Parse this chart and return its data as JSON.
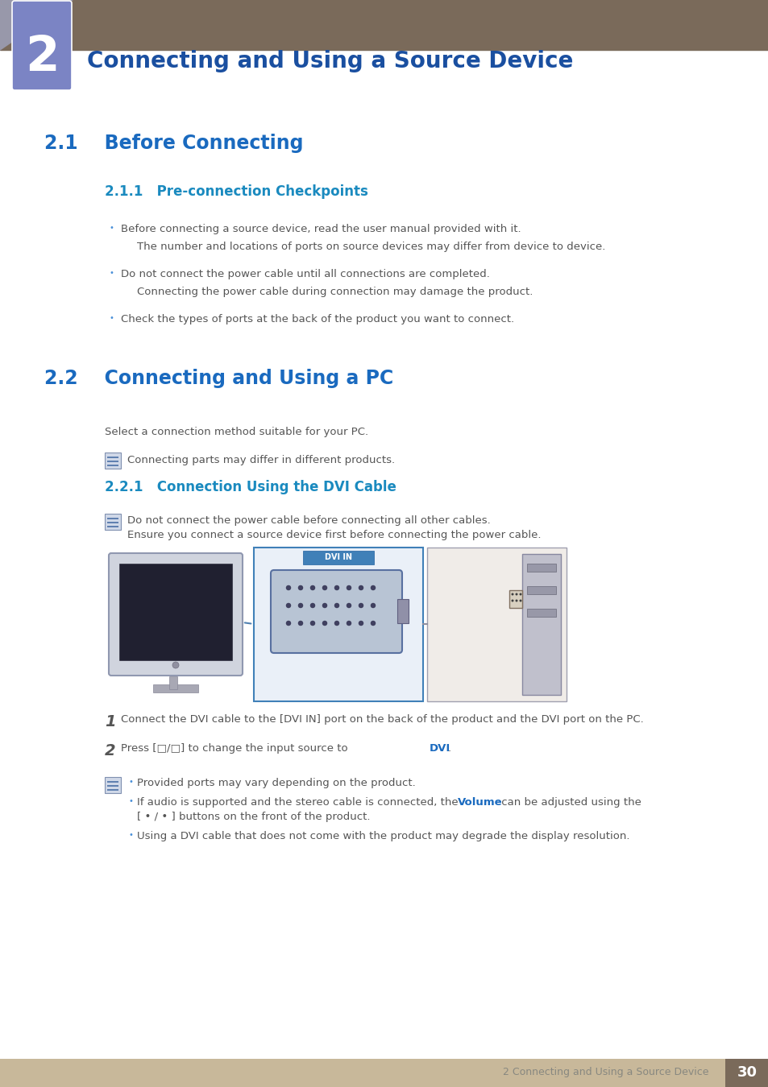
{
  "page_bg": "#ffffff",
  "header_bar_color": "#7a6a5a",
  "chapter_box_color": "#7b84c4",
  "chapter_number": "2",
  "chapter_title": "Connecting and Using a Source Device",
  "chapter_title_color": "#1a4fa0",
  "section_21_title": "2.1    Before Connecting",
  "section_21_color": "#1a6abf",
  "subsection_211_title": "2.1.1   Pre-connection Checkpoints",
  "subsection_211_color": "#1a8abf",
  "bullet_color": "#4a90d9",
  "body_text_color": "#555555",
  "bullets_211": [
    "Before connecting a source device, read the user manual provided with it.",
    "The number and locations of ports on source devices may differ from device to device.",
    "Do not connect the power cable until all connections are completed.",
    "Connecting the power cable during connection may damage the product.",
    "Check the types of ports at the back of the product you want to connect."
  ],
  "bullet_211_is_main": [
    true,
    false,
    true,
    false,
    true
  ],
  "section_22_title": "2.2    Connecting and Using a PC",
  "section_22_color": "#1a6abf",
  "intro_text": "Select a connection method suitable for your PC.",
  "note_text_1": "Connecting parts may differ in different products.",
  "subsection_221_title": "2.2.1   Connection Using the DVI Cable",
  "subsection_221_color": "#1a8abf",
  "note_text_2a": "Do not connect the power cable before connecting all other cables.",
  "note_text_2b": "Ensure you connect a source device first before connecting the power cable.",
  "step1": "Connect the DVI cable to the [DVI IN] port on the back of the product and the DVI port on the PC.",
  "step2_before_dvi": "Press [□/□] to change the input source to ",
  "step2_dvi": "DVI",
  "step2_after_dvi": ".",
  "note_volume_color": "#1a6abf",
  "note_b1": "Provided ports may vary depending on the product.",
  "note_b2a": "If audio is supported and the stereo cable is connected, the ",
  "note_b2_volume": "Volume",
  "note_b2b": " can be adjusted using the",
  "note_b2c": "[ • / • ] buttons on the front of the product.",
  "note_b3": "Using a DVI cable that does not come with the product may degrade the display resolution.",
  "footer_bar_color": "#c8b89a",
  "footer_text": "2 Connecting and Using a Source Device",
  "footer_page": "30",
  "footer_page_bg": "#7a6a5a",
  "footer_text_color": "#888880"
}
